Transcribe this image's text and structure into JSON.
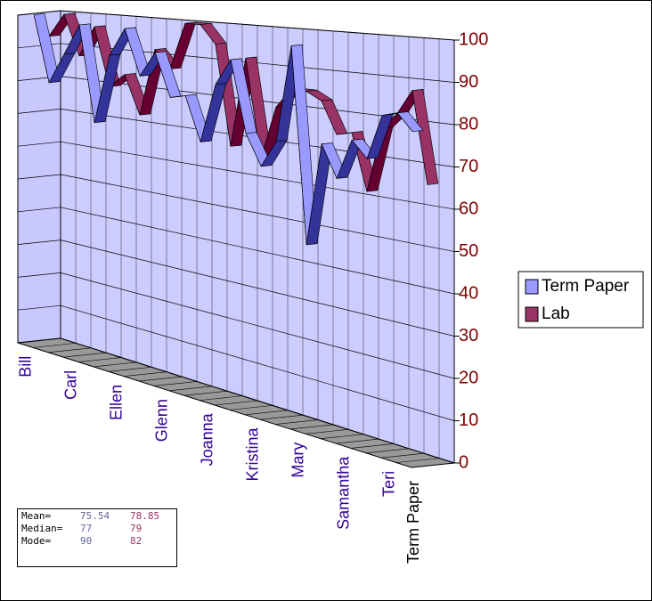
{
  "chart_data": {
    "type": "line3d",
    "categories": [
      "Bill",
      null,
      null,
      "Carl",
      null,
      null,
      "Ellen",
      null,
      null,
      "Glenn",
      null,
      null,
      "Joanna",
      null,
      null,
      "Kristina",
      null,
      null,
      "Mary",
      null,
      null,
      "Samantha",
      null,
      null,
      "Teri",
      null
    ],
    "series": [
      {
        "name": "Term Paper",
        "color": "#9999ff",
        "side": "#333399",
        "values": [
          100,
          80,
          89,
          98,
          70,
          90,
          98,
          85,
          92,
          80,
          81,
          69,
          85,
          92,
          73,
          65,
          72,
          97,
          47,
          73,
          65,
          75,
          71,
          82,
          83,
          79
        ]
      },
      {
        "name": "Lab",
        "color": "#993366",
        "side": "#660033",
        "values": [
          93,
          100,
          88,
          97,
          80,
          84,
          73,
          92,
          87,
          100,
          100,
          95,
          68,
          92,
          66,
          80,
          85,
          85,
          83,
          75,
          76,
          62,
          78,
          82,
          88,
          66
        ]
      }
    ],
    "ylim": [
      0,
      100
    ],
    "yticks": [
      0,
      10,
      20,
      30,
      40,
      50,
      60,
      70,
      80,
      90,
      100
    ],
    "depth_label": "Term Paper",
    "grid": true,
    "legend": "right"
  },
  "stats": {
    "rows": [
      [
        "Mean=",
        "75.54",
        "78.85"
      ],
      [
        "Median=",
        "77",
        "79"
      ],
      [
        "Mode=",
        "90",
        "82"
      ]
    ]
  }
}
